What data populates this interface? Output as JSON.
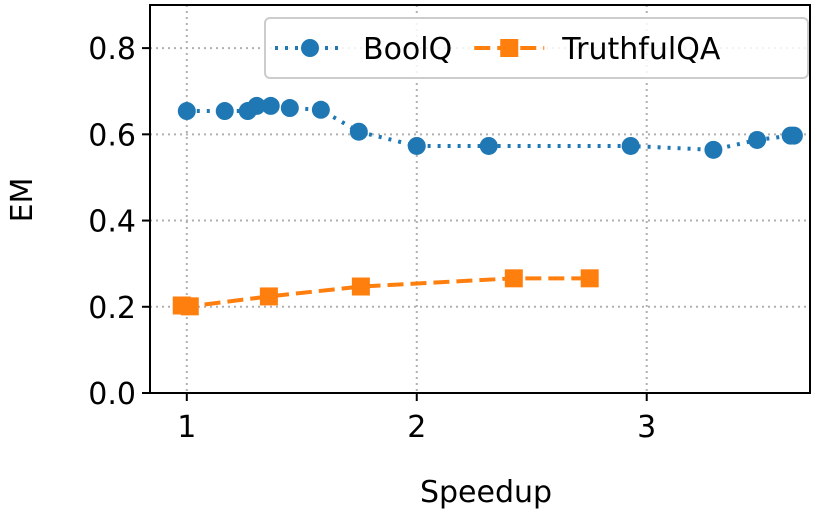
{
  "chart_data": {
    "type": "line",
    "x_label": "Speedup",
    "y_label": "EM",
    "xlim": [
      0.84,
      3.71
    ],
    "ylim": [
      0,
      0.9
    ],
    "xticks": [
      1,
      2,
      3
    ],
    "yticks": [
      {
        "value": 0,
        "label": "0.0"
      },
      0.2,
      0.4,
      0.6,
      0.8
    ],
    "grid": true,
    "legend": "upper right",
    "series": [
      {
        "name": "BoolQ",
        "color": "#1f77b4",
        "marker": "circle",
        "linestyle": "dotted",
        "x": [
          1.0,
          1.165,
          1.265,
          1.304,
          1.365,
          1.448,
          1.583,
          1.748,
          2.0,
          2.313,
          2.93,
          3.29,
          3.48,
          3.626,
          3.64
        ],
        "values": [
          0.654,
          0.654,
          0.654,
          0.666,
          0.666,
          0.661,
          0.657,
          0.606,
          0.573,
          0.573,
          0.573,
          0.564,
          0.587,
          0.597,
          0.597
        ]
      },
      {
        "name": "TruthfulQA",
        "color": "#ff7f0e",
        "marker": "square",
        "linestyle": "dashed",
        "x": [
          0.978,
          1.013,
          1.357,
          1.757,
          2.422,
          2.752
        ],
        "values": [
          0.203,
          0.201,
          0.224,
          0.247,
          0.266,
          0.266
        ]
      }
    ]
  }
}
